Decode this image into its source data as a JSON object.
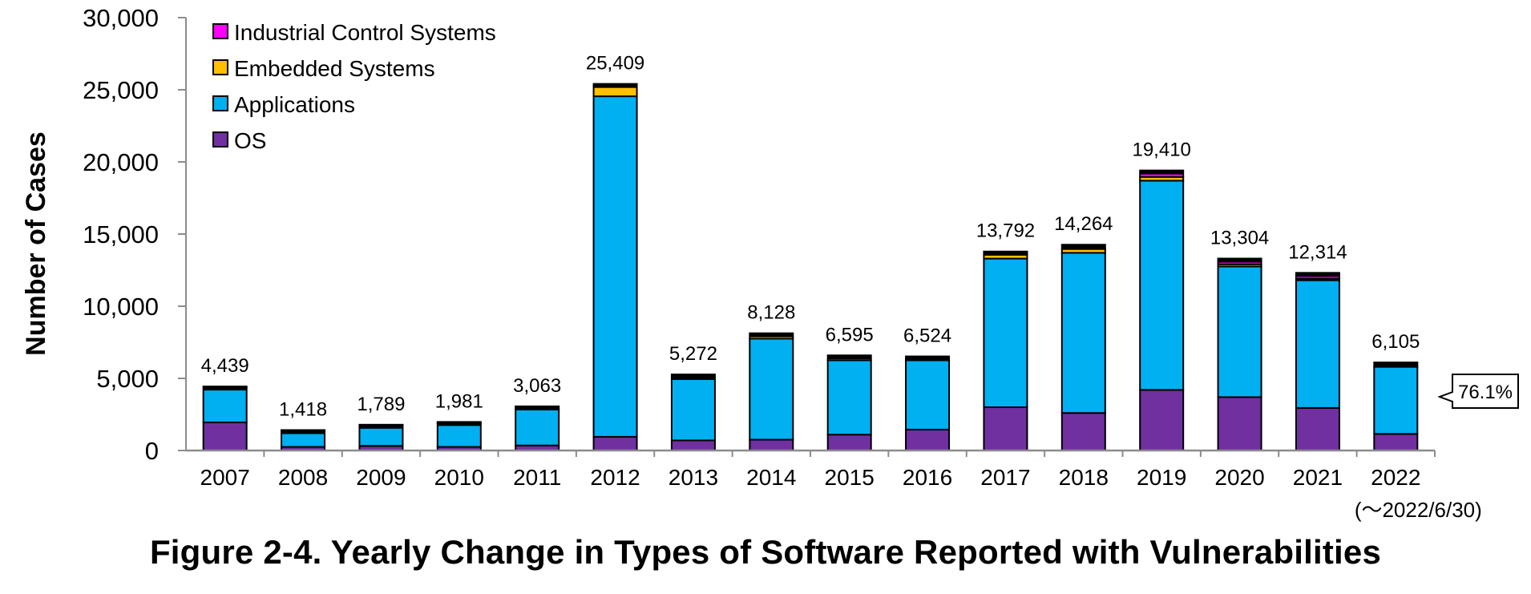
{
  "figure_caption": "Figure 2-4. Yearly Change in Types of Software Reported with Vulnerabilities",
  "chart_data": {
    "type": "bar",
    "stacked": true,
    "title": "",
    "xlabel": "",
    "ylabel": "Number of Cases",
    "ylim": [
      0,
      30000
    ],
    "yticks": [
      0,
      5000,
      10000,
      15000,
      20000,
      25000,
      30000
    ],
    "ytick_labels": [
      "0",
      "5,000",
      "10,000",
      "15,000",
      "20,000",
      "25,000",
      "30,000"
    ],
    "grid": false,
    "legend_position": "top-left",
    "categories": [
      "2007",
      "2008",
      "2009",
      "2010",
      "2011",
      "2012",
      "2013",
      "2014",
      "2015",
      "2016",
      "2017",
      "2018",
      "2019",
      "2020",
      "2021",
      "2022"
    ],
    "last_category_note": "(～2022/6/30)",
    "totals": [
      4439,
      1418,
      1789,
      1981,
      3063,
      25409,
      5272,
      8128,
      6595,
      6524,
      13792,
      14264,
      19410,
      13304,
      12314,
      6105
    ],
    "total_labels": [
      "4,439",
      "1,418",
      "1,789",
      "1,981",
      "3,063",
      "25,409",
      "5,272",
      "8,128",
      "6,595",
      "6,524",
      "13,792",
      "14,264",
      "19,410",
      "13,304",
      "12,314",
      "6,105"
    ],
    "series": [
      {
        "name": "OS",
        "color": "#7030A0",
        "values": [
          1950,
          250,
          320,
          250,
          350,
          950,
          700,
          750,
          1100,
          1450,
          3000,
          2600,
          4200,
          3700,
          2950,
          1150
        ]
      },
      {
        "name": "Applications",
        "color": "#00B0F0",
        "values": [
          2400,
          1100,
          1400,
          1650,
          2550,
          23600,
          4250,
          7000,
          5150,
          4800,
          10300,
          11100,
          14500,
          9050,
          8850,
          4650
        ]
      },
      {
        "name": "Embedded Systems",
        "color": "#FFC000",
        "values": [
          89,
          68,
          69,
          81,
          163,
          859,
          322,
          378,
          345,
          274,
          272,
          264,
          260,
          154,
          114,
          305
        ]
      },
      {
        "name": "Industrial Control Systems",
        "color": "#FF00FF",
        "values": [
          0,
          0,
          0,
          0,
          0,
          0,
          0,
          0,
          0,
          0,
          220,
          300,
          450,
          400,
          400,
          0
        ]
      }
    ],
    "annotations": [
      {
        "category": "2022",
        "text": "76.1%"
      }
    ]
  }
}
